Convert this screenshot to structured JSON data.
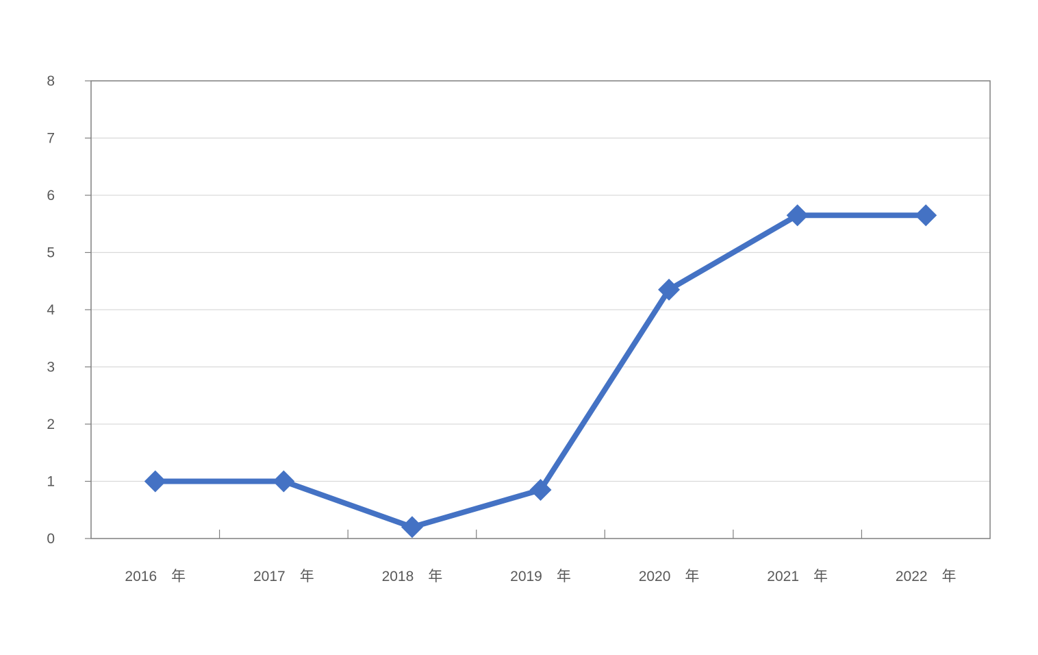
{
  "chart_data": {
    "type": "line",
    "categories": [
      "2016　年",
      "2017　年",
      "2018　年",
      "2019　年",
      "2020　年",
      "2021　年",
      "2022　年"
    ],
    "series": [
      {
        "values": [
          1.0,
          1.0,
          0.2,
          0.85,
          4.35,
          5.65,
          5.65
        ]
      }
    ],
    "ylim": [
      0,
      8
    ],
    "yticks": [
      0,
      1,
      2,
      3,
      4,
      5,
      6,
      7,
      8
    ],
    "grid": true,
    "marker": "diamond",
    "colors": {
      "line": "#4472C4",
      "grid": "#D9D9D9",
      "axis": "#7F7F7F",
      "text": "#595959"
    }
  }
}
